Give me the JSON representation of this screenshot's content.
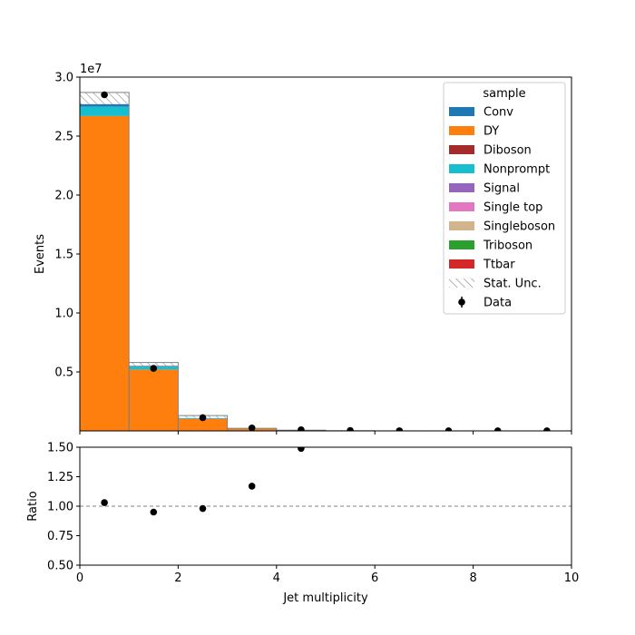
{
  "chart_data": {
    "type": "bar",
    "xlabel": "Jet multiplicity",
    "top": {
      "ylabel": "Events",
      "offset_label": "1e7",
      "ylim": [
        0,
        3.0
      ],
      "ytick_labels": [
        "0.5",
        "1.0",
        "1.5",
        "2.0",
        "2.5",
        "3.0"
      ],
      "units": "1e7 events"
    },
    "bottom": {
      "ylabel": "Ratio",
      "ylim": [
        0.5,
        1.5
      ],
      "ytick_labels": [
        "0.50",
        "0.75",
        "1.00",
        "1.25",
        "1.50"
      ],
      "reference_line": 1.0
    },
    "xlim": [
      0,
      10
    ],
    "xtick_labels": [
      "0",
      "2",
      "4",
      "6",
      "8",
      "10"
    ],
    "bins": [
      [
        0,
        1
      ],
      [
        1,
        2
      ],
      [
        2,
        3
      ],
      [
        3,
        4
      ],
      [
        4,
        5
      ],
      [
        5,
        6
      ],
      [
        6,
        7
      ],
      [
        7,
        8
      ],
      [
        8,
        9
      ],
      [
        9,
        10
      ]
    ],
    "legend": {
      "title": "sample",
      "placement": "top-right",
      "entries": [
        {
          "label": "Conv",
          "color": "#1f77b4",
          "kind": "fill"
        },
        {
          "label": "DY",
          "color": "#ff7f0e",
          "kind": "fill"
        },
        {
          "label": "Diboson",
          "color": "#a52a2a",
          "kind": "fill"
        },
        {
          "label": "Nonprompt",
          "color": "#17becf",
          "kind": "fill"
        },
        {
          "label": "Signal",
          "color": "#9467bd",
          "kind": "fill"
        },
        {
          "label": "Single top",
          "color": "#e377c2",
          "kind": "fill"
        },
        {
          "label": "Singleboson",
          "color": "#d2b48c",
          "kind": "fill"
        },
        {
          "label": "Triboson",
          "color": "#2ca02c",
          "kind": "fill"
        },
        {
          "label": "Ttbar",
          "color": "#d62728",
          "kind": "fill"
        },
        {
          "label": "Stat. Unc.",
          "color": "#888888",
          "kind": "hatch"
        },
        {
          "label": "Data",
          "color": "#000000",
          "kind": "marker"
        }
      ]
    },
    "series": [
      {
        "name": "DY",
        "color": "#ff7f0e",
        "values": [
          2.67,
          0.52,
          0.1,
          0.018,
          0.004,
          0.001,
          0.0003,
          0.0001,
          5e-05,
          2e-05
        ]
      },
      {
        "name": "Diboson",
        "color": "#a52a2a",
        "values": [
          0.0005,
          0.0002,
          0.0001,
          4e-05,
          1e-05,
          0,
          0,
          0,
          0,
          0
        ]
      },
      {
        "name": "Nonprompt",
        "color": "#17becf",
        "values": [
          0.08,
          0.025,
          0.006,
          0.001,
          0.0002,
          5e-05,
          0,
          0,
          0,
          0
        ]
      },
      {
        "name": "Conv",
        "color": "#1f77b4",
        "values": [
          0.02,
          0.005,
          0.001,
          0.0002,
          0,
          0,
          0,
          0,
          0,
          0
        ]
      },
      {
        "name": "Ttbar",
        "color": "#d62728",
        "values": [
          0.001,
          0.002,
          0.002,
          0.001,
          0.0005,
          0.0002,
          5e-05,
          0,
          0,
          0
        ]
      }
    ],
    "mc_total_with_unc": [
      2.87,
      0.58,
      0.13,
      0.022,
      0.006,
      0.0015,
      0.0004,
      0.0002,
      0.0001,
      5e-05
    ],
    "data": {
      "x": [
        0.5,
        1.5,
        2.5,
        3.5,
        4.5,
        5.5,
        6.5,
        7.5,
        8.5,
        9.5
      ],
      "y": [
        2.85,
        0.53,
        0.112,
        0.025,
        0.009,
        0.003,
        0.001,
        0.0005,
        0.0003,
        0.0002
      ]
    },
    "ratio": {
      "x": [
        0.5,
        1.5,
        2.5,
        3.5,
        4.5
      ],
      "y": [
        1.03,
        0.95,
        0.98,
        1.17,
        1.49
      ]
    }
  }
}
